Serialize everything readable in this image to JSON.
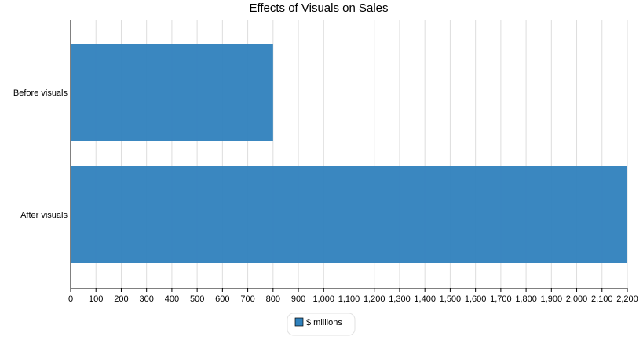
{
  "chart_data": {
    "type": "bar",
    "orientation": "horizontal",
    "title": "Effects of Visuals on Sales",
    "categories": [
      "Before visuals",
      "After visuals"
    ],
    "series": [
      {
        "name": "$ millions",
        "color": "#2f81bd",
        "values": [
          800,
          2200
        ]
      }
    ],
    "xlim": [
      0,
      2200
    ],
    "xticks": [
      0,
      100,
      200,
      300,
      400,
      500,
      600,
      700,
      800,
      900,
      {
        "value": 1000,
        "label": "1,000"
      },
      {
        "value": 1100,
        "label": "1,100"
      },
      {
        "value": 1200,
        "label": "1,200"
      },
      {
        "value": 1300,
        "label": "1,300"
      },
      {
        "value": 1400,
        "label": "1,400"
      },
      {
        "value": 1500,
        "label": "1,500"
      },
      {
        "value": 1600,
        "label": "1,600"
      },
      {
        "value": 1700,
        "label": "1,700"
      },
      {
        "value": 1800,
        "label": "1,800"
      },
      {
        "value": 1900,
        "label": "1,900"
      },
      {
        "value": 2000,
        "label": "2,000"
      },
      {
        "value": 2100,
        "label": "2,100"
      },
      {
        "value": 2200,
        "label": "2,200"
      }
    ],
    "grid": true,
    "legend": "bottom"
  }
}
